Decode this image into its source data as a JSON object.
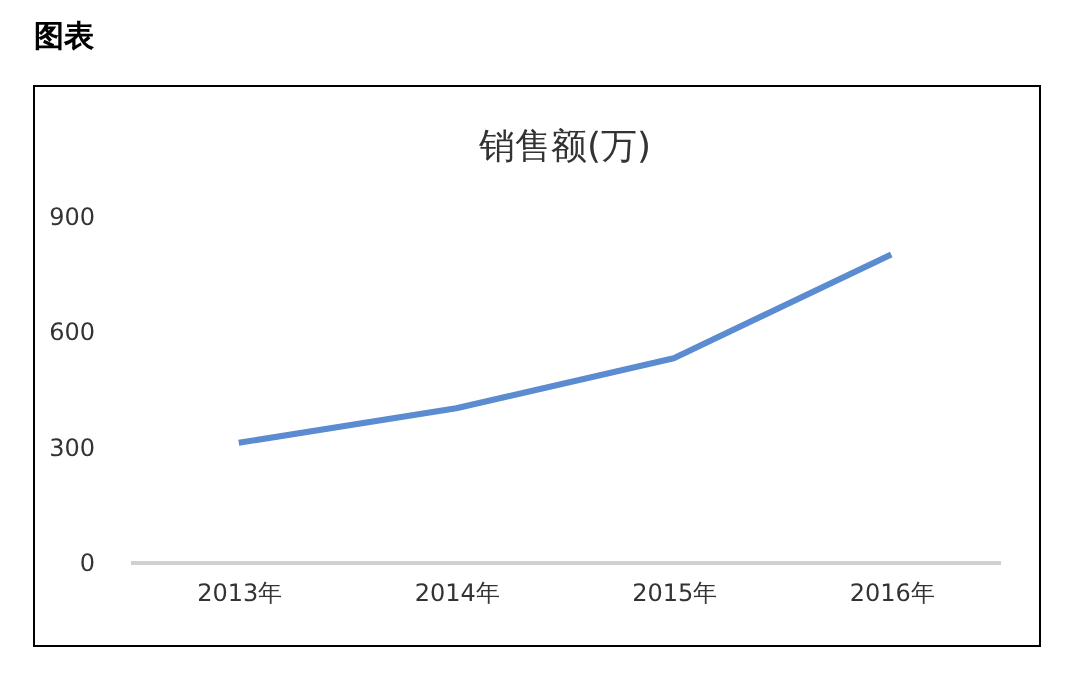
{
  "chart_data": {
    "type": "line",
    "title": "销售额(万)",
    "annotations": [
      "图表"
    ],
    "categories": [
      "2013年",
      "2014年",
      "2015年",
      "2016年"
    ],
    "series": [
      {
        "color": "#5b8bd0",
        "values": [
          310,
          400,
          530,
          800
        ]
      }
    ],
    "ylim": [
      0,
      900
    ],
    "yticks": [
      0,
      300,
      600,
      900
    ],
    "grid": false
  }
}
